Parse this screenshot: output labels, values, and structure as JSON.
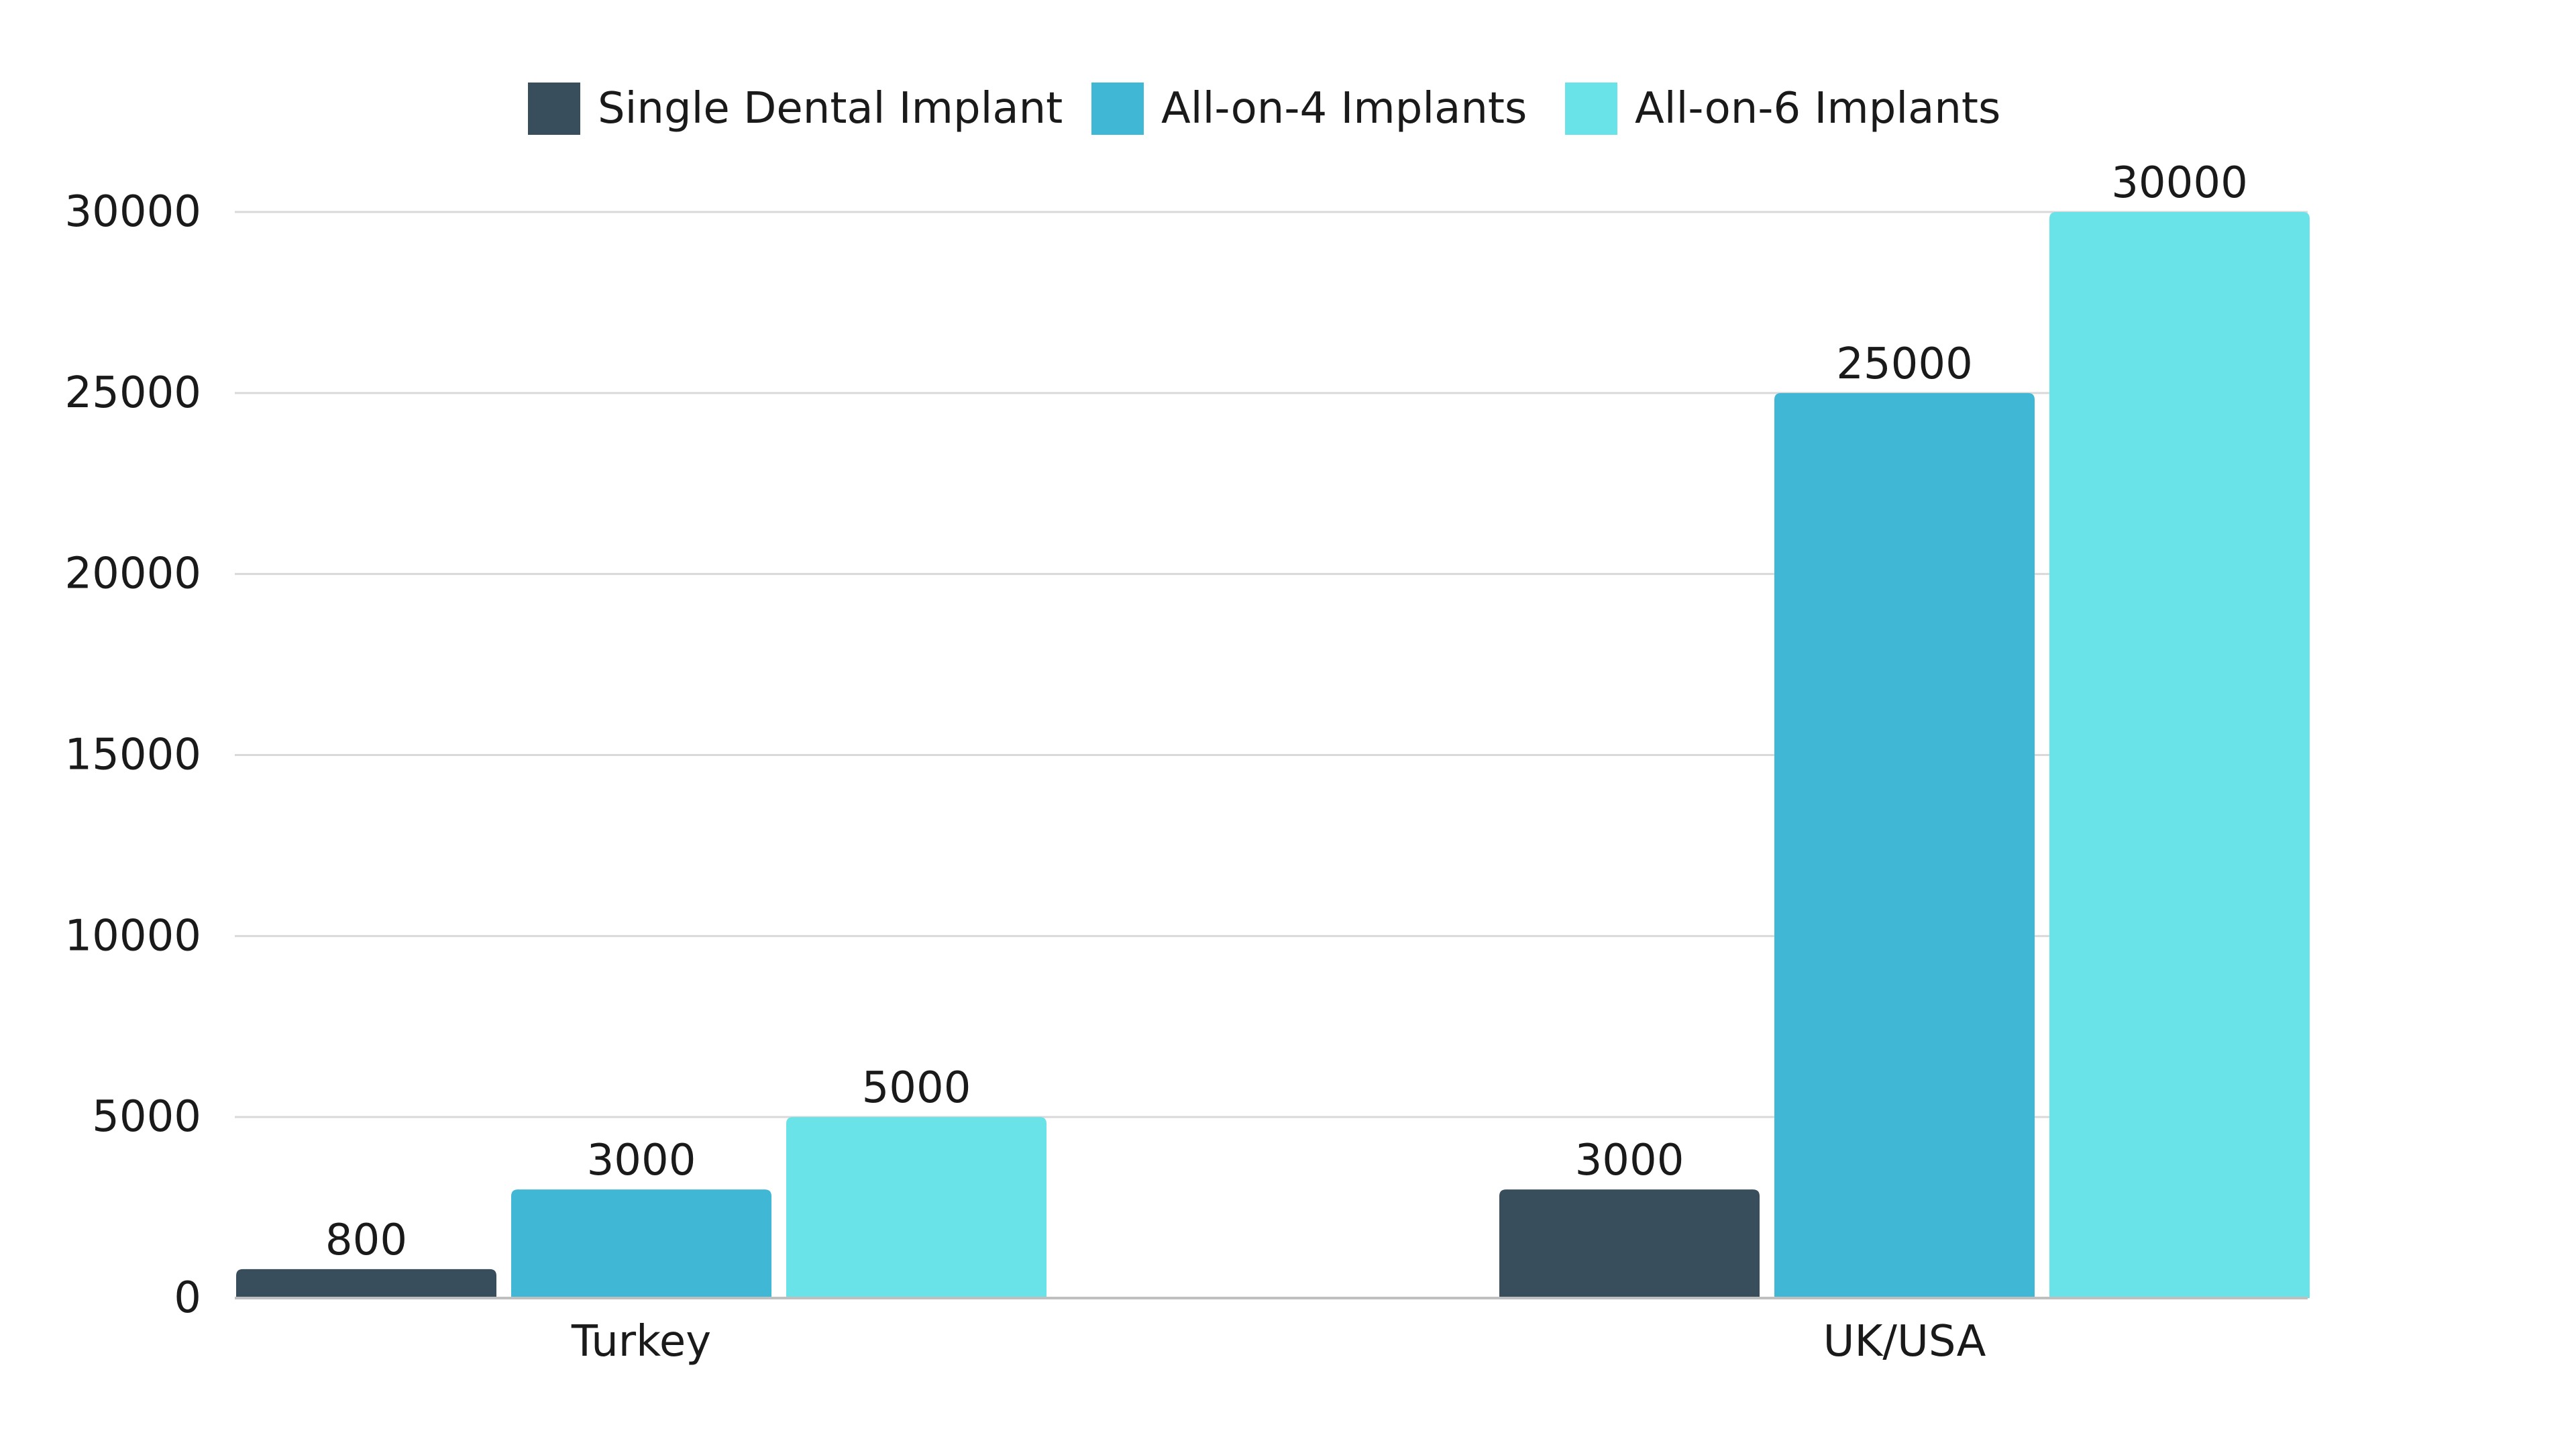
{
  "chart_data": {
    "type": "bar",
    "title": "",
    "xlabel": "",
    "ylabel": "",
    "categories": [
      "Turkey",
      "UK/USA"
    ],
    "series": [
      {
        "name": "Single Dental Implant",
        "color": "#384e5c",
        "values": [
          800,
          3000
        ]
      },
      {
        "name": "All-on-4 Implants",
        "color": "#41b7d6",
        "values": [
          3000,
          25000
        ]
      },
      {
        "name": "All-on-6 Implants",
        "color": "#6ae3e8",
        "values": [
          5000,
          30000
        ]
      }
    ],
    "ylim": [
      0,
      30000
    ],
    "yticks": [
      0,
      5000,
      10000,
      15000,
      20000,
      25000,
      30000
    ],
    "grid": true,
    "legend_position": "top-center",
    "data_labels": true
  },
  "colors": {
    "grid": "#d9d9d9",
    "axis": "#bfbfbf",
    "text": "#1a1a1a"
  }
}
